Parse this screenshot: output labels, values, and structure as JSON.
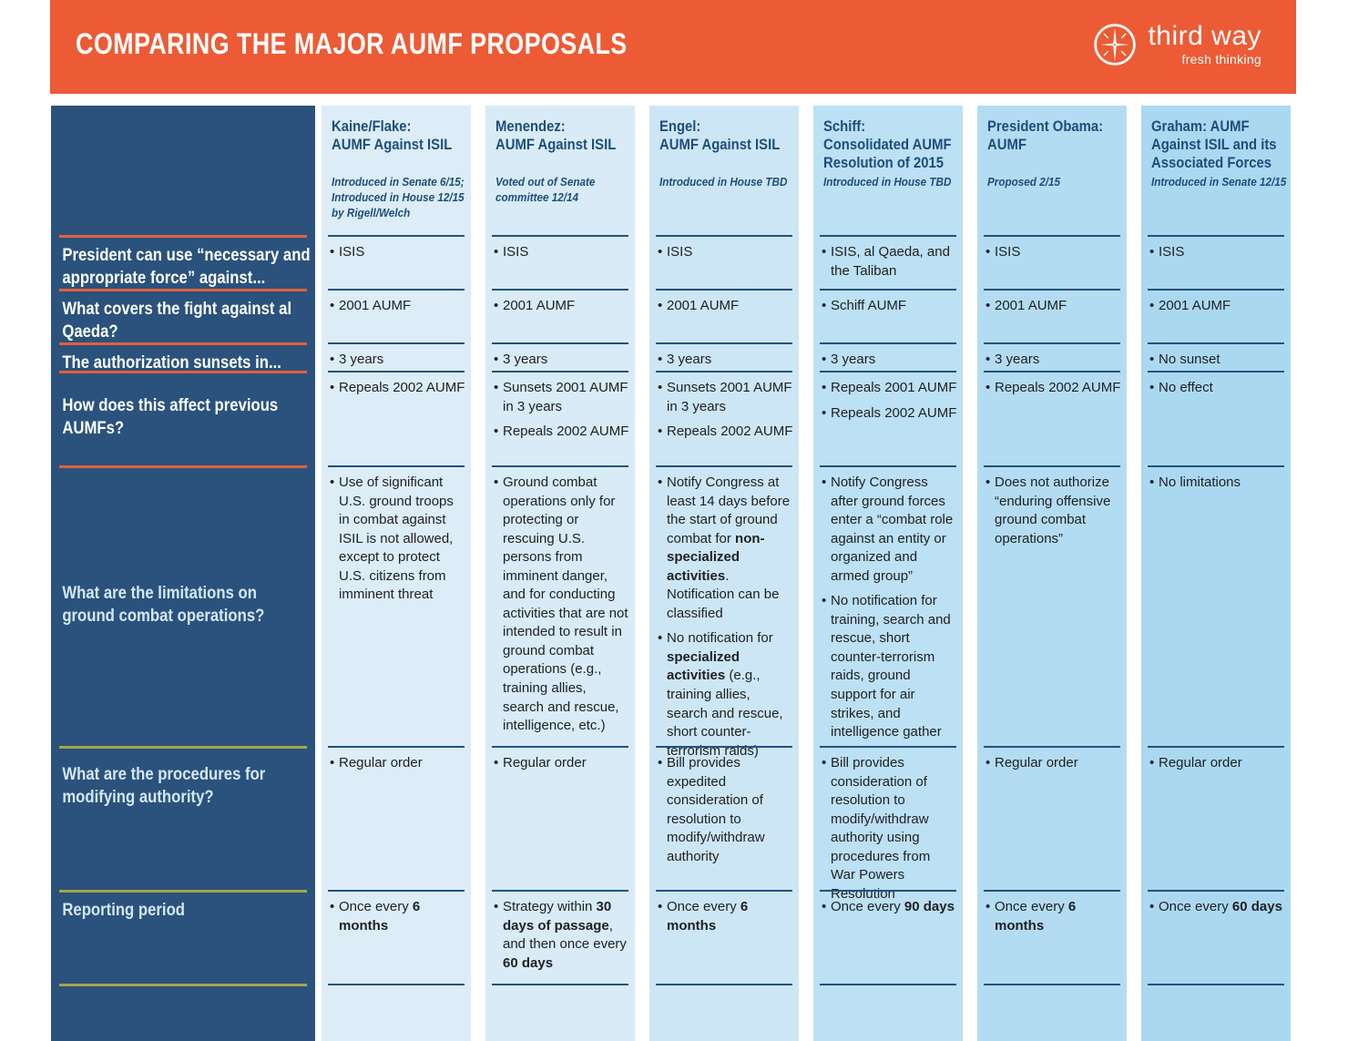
{
  "header": {
    "title": "COMPARING THE MAJOR AUMF PROPOSALS",
    "logo": {
      "brand": "third way",
      "tagline": "fresh thinking"
    }
  },
  "colors": {
    "orange": "#EC5B35",
    "sidebar_navy": "#2A527D",
    "header_text_navy": "#1E4E7C",
    "cell_line_navy": "#24527E",
    "divider_orange": "#E2603C",
    "divider_olive": "#A8A644",
    "column_bgs": [
      "#DCEDF8",
      "#D8EBF7",
      "#CDE6F5",
      "#BCE0F4",
      "#B3DCF2",
      "#ABD8F1"
    ]
  },
  "chart_data": {
    "type": "table",
    "title": "COMPARING THE MAJOR AUMF PROPOSALS",
    "row_labels": [
      "President can use “necessary and appropriate force” against...",
      "What covers the fight against al Qaeda?",
      "The authorization sunsets in...",
      "How does this affect previous AUMFs?",
      "What are the limitations on ground combat operations?",
      "What are the procedures for modifying authority?",
      "Reporting period"
    ],
    "columns": [
      {
        "title": "Kaine/Flake:\nAUMF Against ISIL",
        "subtitle": "Introduced in Senate 6/15; Introduced in House 12/15 by Rigell/Welch",
        "cells": [
          [
            "ISIS"
          ],
          [
            "2001 AUMF"
          ],
          [
            "3 years"
          ],
          [
            "Repeals 2002 AUMF"
          ],
          [
            "Use of significant U.S. ground troops in combat against ISIL is not allowed, except to protect U.S. citizens from imminent threat"
          ],
          [
            "Regular order"
          ],
          [
            "Once every **6 months**"
          ]
        ]
      },
      {
        "title": "Menendez:\nAUMF Against ISIL",
        "subtitle": "Voted out of Senate committee 12/14",
        "cells": [
          [
            "ISIS"
          ],
          [
            "2001 AUMF"
          ],
          [
            "3 years"
          ],
          [
            "Sunsets 2001 AUMF in 3 years",
            "Repeals 2002 AUMF"
          ],
          [
            "Ground combat operations only for protecting or rescuing U.S. persons from imminent danger, and for conducting activities that are not intended to result in ground combat operations (e.g., training allies, search and rescue, intelligence, etc.)"
          ],
          [
            "Regular order"
          ],
          [
            "Strategy within **30 days of passage**, and then once every **60 days**"
          ]
        ]
      },
      {
        "title": "Engel:\nAUMF Against ISIL",
        "subtitle": "Introduced in House TBD",
        "cells": [
          [
            "ISIS"
          ],
          [
            "2001 AUMF"
          ],
          [
            "3 years"
          ],
          [
            "Sunsets 2001 AUMF in 3 years",
            "Repeals 2002 AUMF"
          ],
          [
            "Notify Congress at least 14 days before the start of ground combat for **non-specialized activities**. Notification can be classified",
            "No notification for **specialized activities** (e.g., training allies, search and rescue, short counter-terrorism raids)"
          ],
          [
            "Bill provides expedited consideration of resolution to modify/withdraw authority"
          ],
          [
            "Once every **6 months**"
          ]
        ]
      },
      {
        "title": "Schiff:\nConsolidated AUMF\nResolution of 2015",
        "subtitle": "Introduced in House TBD",
        "cells": [
          [
            "ISIS, al Qaeda, and the Taliban"
          ],
          [
            "Schiff AUMF"
          ],
          [
            "3 years"
          ],
          [
            "Repeals 2001 AUMF",
            "Repeals 2002 AUMF"
          ],
          [
            "Notify Congress after ground forces enter a “combat role against an entity or organized and armed group”",
            "No notification for training, search and rescue, short counter-terrorism raids, ground support for air strikes, and intelligence gather"
          ],
          [
            "Bill provides consideration of resolution to modify/withdraw authority using procedures from War Powers Resolution"
          ],
          [
            "Once every **90 days**"
          ]
        ]
      },
      {
        "title": "President Obama:\nAUMF",
        "subtitle": "Proposed 2/15",
        "cells": [
          [
            "ISIS"
          ],
          [
            "2001 AUMF"
          ],
          [
            "3 years"
          ],
          [
            "Repeals 2002 AUMF"
          ],
          [
            "Does not authorize “enduring offensive ground combat operations”"
          ],
          [
            "Regular order"
          ],
          [
            "Once every **6 months**"
          ]
        ]
      },
      {
        "title": "Graham: AUMF\nAgainst ISIL and its\nAssociated Forces",
        "subtitle": "Introduced in Senate 12/15",
        "cells": [
          [
            "ISIS"
          ],
          [
            "2001 AUMF"
          ],
          [
            "No sunset"
          ],
          [
            "No effect"
          ],
          [
            "No limitations"
          ],
          [
            "Regular order"
          ],
          [
            "Once every **60 days**"
          ]
        ]
      }
    ]
  }
}
